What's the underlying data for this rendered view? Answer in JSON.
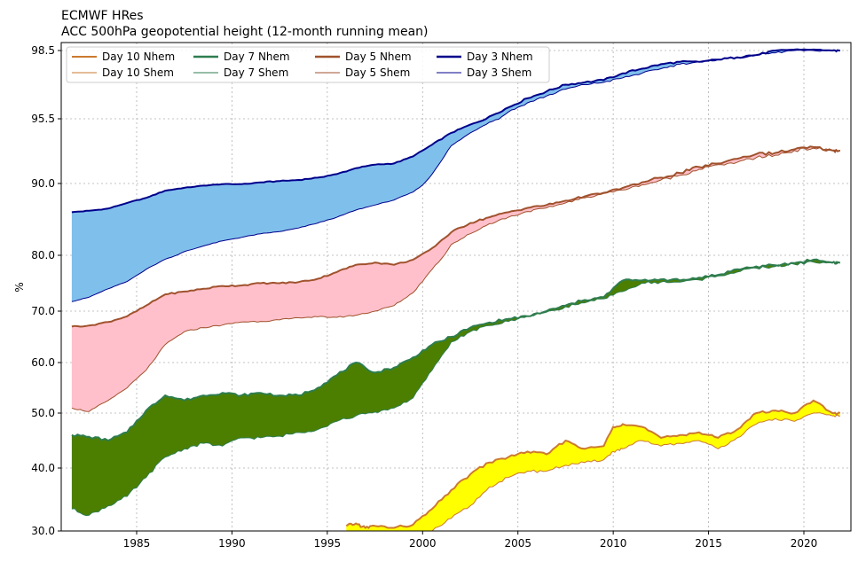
{
  "chart_data": {
    "type": "area",
    "title": "ECMWF HRes",
    "subtitle": "ACC 500hPa geopotential height (12-month running mean)",
    "xlabel": "",
    "ylabel": "%",
    "xlim": [
      1981.5,
      2022.3
    ],
    "x_ticks": [
      1985,
      1990,
      1995,
      2000,
      2005,
      2010,
      2015,
      2020
    ],
    "y_ticks": [
      30.0,
      40.0,
      50.0,
      60.0,
      70.0,
      80.0,
      90.0,
      95.5,
      98.5
    ],
    "y_tick_labels": [
      "30.0",
      "40.0",
      "50.0",
      "60.0",
      "70.0",
      "80.0",
      "90.0",
      "95.5",
      "98.5"
    ],
    "y_scale": "non-linear (tick positions as shown)",
    "grid": true,
    "legend": {
      "placement": "top-left",
      "entries": [
        "Day 10 Nhem",
        "Day 10 Shem",
        "Day 7 Nhem",
        "Day 7 Shem",
        "Day 5 Nhem",
        "Day 5 Shem",
        "Day 3 Nhem",
        "Day 3 Shem"
      ]
    },
    "series": [
      {
        "name": "Day 3",
        "nhem_color": "#00008b",
        "shem_color": "#00008b",
        "fill_color": "#7fbfeb",
        "x": [
          1981.6,
          1982.5,
          1983.5,
          1984.5,
          1985.5,
          1986.5,
          1987.5,
          1988.5,
          1989.5,
          1990.5,
          1991.5,
          1992.5,
          1993.5,
          1994.5,
          1995.5,
          1996.5,
          1997.5,
          1998.5,
          1999.5,
          2000.5,
          2001.5,
          2002.5,
          2003.5,
          2004.5,
          2005.5,
          2006.5,
          2007.5,
          2008.5,
          2009.5,
          2010.5,
          2011.5,
          2012.5,
          2013.5,
          2014.5,
          2015.5,
          2016.5,
          2017.5,
          2018.5,
          2019.5,
          2020.5,
          2021.5,
          2021.9
        ],
        "nhem": [
          86.0,
          86.2,
          86.5,
          87.3,
          88.0,
          89.0,
          89.4,
          89.7,
          89.9,
          89.9,
          90.1,
          90.2,
          90.3,
          90.5,
          90.8,
          91.3,
          91.6,
          91.7,
          92.3,
          93.3,
          94.3,
          95.0,
          95.6,
          96.0,
          96.4,
          96.7,
          97.0,
          97.1,
          97.2,
          97.5,
          97.7,
          97.9,
          98.0,
          98.0,
          98.1,
          98.2,
          98.3,
          98.5,
          98.6,
          98.6,
          98.5,
          98.5
        ],
        "shem": [
          71.7,
          72.5,
          74.0,
          75.3,
          77.5,
          79.3,
          80.5,
          81.3,
          82.0,
          82.5,
          83.0,
          83.3,
          83.8,
          84.5,
          85.3,
          86.3,
          87.0,
          87.7,
          88.8,
          90.8,
          93.2,
          94.3,
          95.2,
          95.8,
          96.2,
          96.5,
          96.8,
          97.0,
          97.1,
          97.3,
          97.5,
          97.7,
          97.9,
          98.0,
          98.1,
          98.2,
          98.3,
          98.4,
          98.5,
          98.5,
          98.5,
          98.5
        ]
      },
      {
        "name": "Day 5",
        "nhem_color": "#a0522d",
        "shem_color": "#a0522d",
        "fill_color": "#ffc0cb",
        "x": [
          1981.6,
          1982.5,
          1983.5,
          1984.5,
          1985.5,
          1986.5,
          1987.5,
          1988.5,
          1989.5,
          1990.5,
          1991.5,
          1992.5,
          1993.5,
          1994.5,
          1995.5,
          1996.5,
          1997.5,
          1998.5,
          1999.5,
          2000.5,
          2001.5,
          2002.5,
          2003.5,
          2004.5,
          2005.5,
          2006.5,
          2007.5,
          2008.5,
          2009.5,
          2010.5,
          2011.5,
          2012.5,
          2013.5,
          2014.5,
          2015.5,
          2016.5,
          2017.5,
          2018.5,
          2019.5,
          2020.5,
          2021.5,
          2021.9
        ],
        "nhem": [
          67.0,
          67.2,
          67.9,
          69.0,
          71.0,
          73.0,
          73.5,
          74.0,
          74.5,
          74.6,
          75.0,
          75.0,
          75.2,
          75.8,
          77.0,
          78.3,
          78.7,
          78.3,
          79.2,
          81.0,
          83.2,
          84.5,
          85.3,
          86.0,
          86.6,
          87.0,
          87.6,
          88.2,
          88.7,
          89.4,
          90.1,
          90.5,
          90.9,
          91.4,
          91.7,
          92.1,
          92.5,
          92.6,
          92.9,
          93.1,
          92.8,
          92.8
        ],
        "shem": [
          51.0,
          50.3,
          52.5,
          55.0,
          58.5,
          63.5,
          66.0,
          66.8,
          67.3,
          67.9,
          68.0,
          68.3,
          68.7,
          68.9,
          68.8,
          69.2,
          70.0,
          71.0,
          73.3,
          77.5,
          81.5,
          83.0,
          84.4,
          85.3,
          86.1,
          86.6,
          87.3,
          88.0,
          88.6,
          89.1,
          89.8,
          90.3,
          90.7,
          91.2,
          91.6,
          91.8,
          92.2,
          92.4,
          92.8,
          93.0,
          92.8,
          92.8
        ]
      },
      {
        "name": "Day 7",
        "nhem_color": "#2e7d4f",
        "shem_color": "#2e7d4f",
        "fill_color": "#4c7f00",
        "x": [
          1981.6,
          1982.5,
          1983.5,
          1984.5,
          1985.5,
          1986.5,
          1987.5,
          1988.5,
          1989.5,
          1990.5,
          1991.5,
          1992.5,
          1993.5,
          1994.5,
          1995.5,
          1996.5,
          1997.5,
          1998.5,
          1999.5,
          2000.5,
          2001.5,
          2002.5,
          2003.5,
          2004.5,
          2005.5,
          2006.5,
          2007.5,
          2008.5,
          2009.5,
          2010.5,
          2011.5,
          2012.5,
          2013.5,
          2014.5,
          2015.5,
          2016.5,
          2017.5,
          2018.5,
          2019.5,
          2020.5,
          2021.5,
          2021.9
        ],
        "nhem": [
          46.0,
          45.7,
          45.0,
          46.5,
          50.5,
          53.5,
          52.5,
          53.5,
          54.0,
          53.5,
          54.0,
          53.5,
          53.5,
          55.0,
          57.5,
          60.0,
          58.0,
          59.0,
          61.0,
          63.5,
          65.0,
          66.8,
          67.8,
          68.5,
          69.0,
          70.0,
          71.0,
          72.0,
          72.5,
          75.5,
          75.5,
          75.7,
          75.5,
          76.0,
          76.5,
          77.5,
          78.0,
          78.2,
          78.6,
          79.2,
          78.7,
          78.7
        ],
        "shem": [
          33.5,
          32.5,
          34.0,
          35.5,
          38.5,
          42.0,
          43.5,
          44.5,
          44.0,
          45.5,
          45.5,
          45.8,
          46.5,
          47.0,
          48.5,
          49.5,
          50.2,
          51.0,
          53.0,
          58.5,
          64.0,
          66.0,
          67.2,
          68.0,
          69.0,
          69.8,
          70.8,
          71.5,
          72.2,
          73.5,
          75.0,
          75.2,
          75.2,
          75.6,
          76.3,
          77.0,
          77.7,
          78.0,
          78.4,
          78.8,
          78.6,
          78.6
        ]
      },
      {
        "name": "Day 10",
        "nhem_color": "#cc7a30",
        "shem_color": "#cc7a30",
        "fill_color": "#ffff00",
        "x": [
          1996.0,
          1996.5,
          1997.0,
          1997.5,
          1998.5,
          1999.5,
          2000.5,
          2001.5,
          2002.5,
          2003.5,
          2004.5,
          2005.5,
          2006.5,
          2007.5,
          2008.5,
          2009.5,
          2010.0,
          2010.5,
          2011.5,
          2012.5,
          2013.5,
          2014.5,
          2015.5,
          2016.5,
          2017.5,
          2018.5,
          2019.5,
          2020.5,
          2021.5,
          2021.9
        ],
        "nhem": [
          30.8,
          31.2,
          30.5,
          30.8,
          30.5,
          31.0,
          33.5,
          36.5,
          39.0,
          41.0,
          42.0,
          43.0,
          42.5,
          45.0,
          43.5,
          44.0,
          47.5,
          48.0,
          47.5,
          45.5,
          46.0,
          46.5,
          45.5,
          47.0,
          50.0,
          50.5,
          50.0,
          52.5,
          50.0,
          50.0
        ],
        "shem": [
          29.0,
          29.0,
          29.0,
          29.0,
          29.0,
          29.0,
          30.0,
          32.0,
          34.0,
          37.0,
          38.5,
          39.5,
          39.5,
          40.5,
          41.0,
          41.5,
          43.0,
          43.5,
          45.0,
          44.0,
          44.5,
          45.0,
          43.5,
          45.5,
          48.0,
          49.0,
          48.5,
          50.0,
          49.5,
          49.5
        ]
      }
    ]
  }
}
